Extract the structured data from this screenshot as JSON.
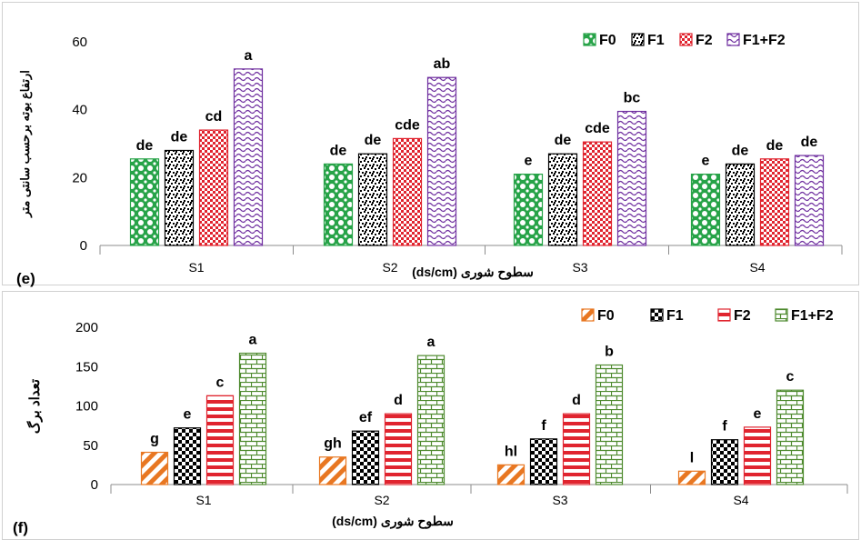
{
  "chart_data": [
    {
      "type": "bar",
      "panel_label": "(e)",
      "title": "",
      "xlabel": "سطوح شوری (ds/cm)",
      "ylabel": "ارتفاع بوته برحسب سانتی متر",
      "categories": [
        "S1",
        "S2",
        "S3",
        "S4"
      ],
      "ylim": [
        0,
        60
      ],
      "yticks": [
        0,
        20,
        40,
        60
      ],
      "grid": false,
      "legend_position": "top-right",
      "series": [
        {
          "name": "F0",
          "color": "#27a348",
          "pattern": "dots",
          "values": [
            25.5,
            24,
            21,
            21
          ],
          "labels": [
            "de",
            "de",
            "e",
            "e"
          ]
        },
        {
          "name": "F1",
          "color": "#000000",
          "pattern": "confetti",
          "values": [
            28,
            27,
            27,
            24
          ],
          "labels": [
            "de",
            "de",
            "de",
            "de"
          ]
        },
        {
          "name": "F2",
          "color": "#e0242f",
          "pattern": "checker",
          "values": [
            34,
            31.5,
            30.5,
            25.5
          ],
          "labels": [
            "cd",
            "cde",
            "cde",
            "de"
          ]
        },
        {
          "name": "F1+F2",
          "color": "#7030a0",
          "pattern": "wave",
          "values": [
            52,
            49.5,
            39.5,
            26.5
          ],
          "labels": [
            "a",
            "ab",
            "bc",
            "de"
          ]
        }
      ]
    },
    {
      "type": "bar",
      "panel_label": "(f)",
      "title": "",
      "xlabel": "سطوح شوری  (ds/cm)",
      "ylabel": "تعداد برگ",
      "categories": [
        "S1",
        "S2",
        "S3",
        "S4"
      ],
      "ylim": [
        0,
        200
      ],
      "yticks": [
        0,
        50,
        100,
        150,
        200
      ],
      "grid": false,
      "legend_position": "top-right",
      "series": [
        {
          "name": "F0",
          "color": "#e87722",
          "pattern": "diagonal",
          "values": [
            41,
            35,
            25,
            17
          ],
          "labels": [
            "g",
            "gh",
            "hl",
            "l"
          ]
        },
        {
          "name": "F1",
          "color": "#000000",
          "pattern": "checker-large",
          "values": [
            72,
            68,
            58,
            57
          ],
          "labels": [
            "e",
            "ef",
            "f",
            "f"
          ]
        },
        {
          "name": "F2",
          "color": "#e0242f",
          "pattern": "hstripes",
          "values": [
            113,
            90,
            90,
            73
          ],
          "labels": [
            "c",
            "d",
            "d",
            "e"
          ]
        },
        {
          "name": "F1+F2",
          "color": "#4e8a2e",
          "pattern": "brick",
          "values": [
            167,
            164,
            152,
            120
          ],
          "labels": [
            "a",
            "a",
            "b",
            "c"
          ]
        }
      ]
    }
  ]
}
